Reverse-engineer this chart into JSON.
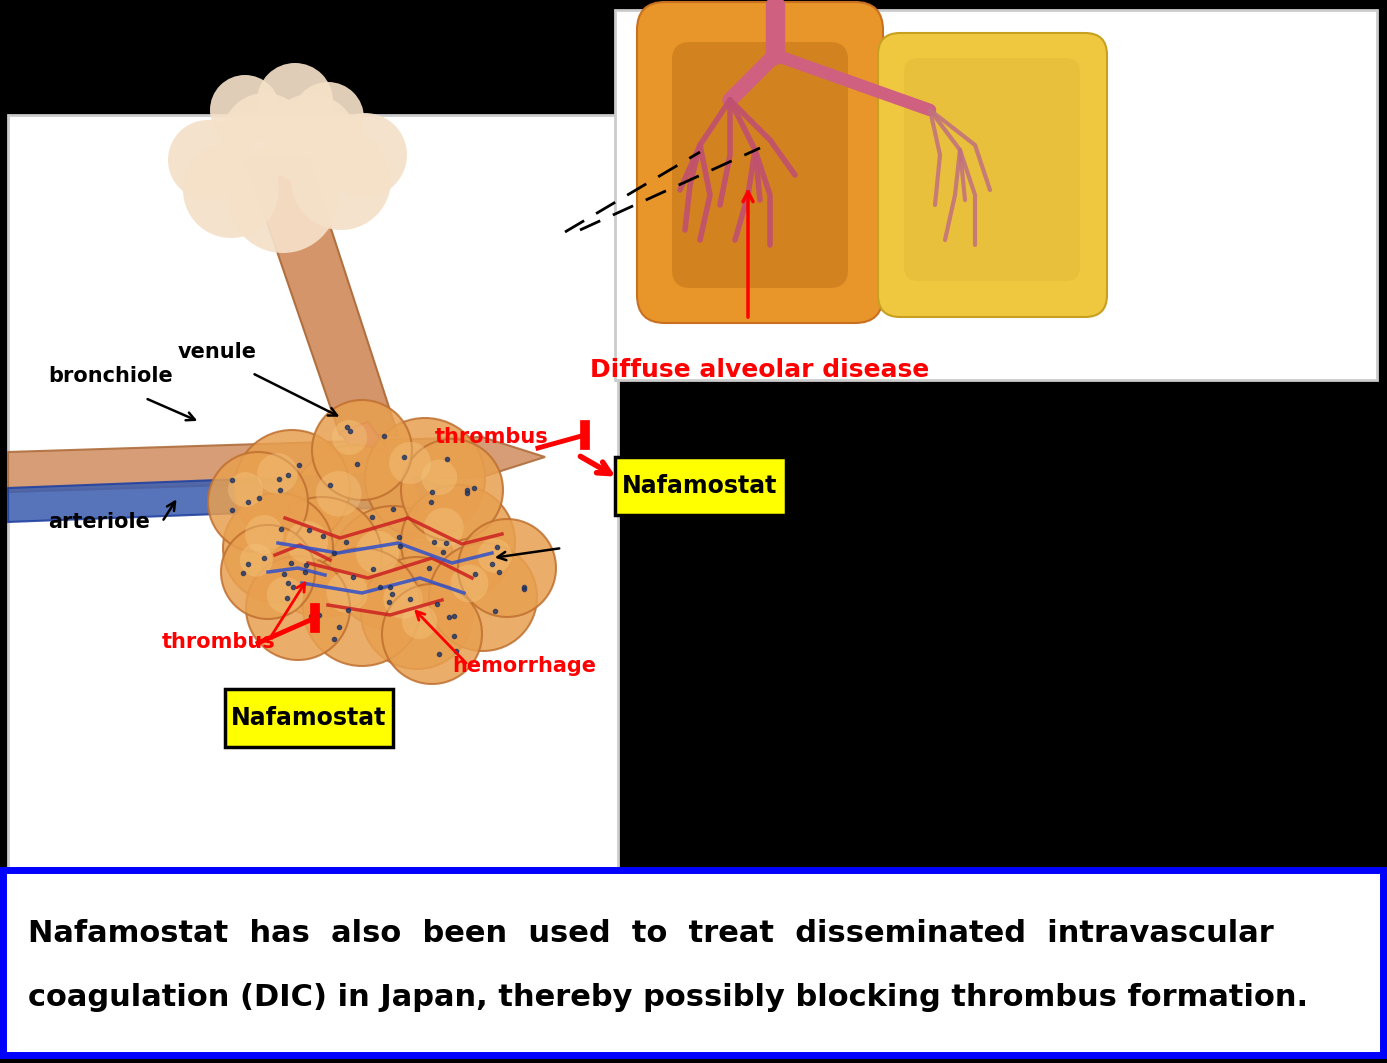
{
  "background_color": "#000000",
  "left_panel_bg": "#ffffff",
  "right_panel_bg": "#ffffff",
  "text_box_bg": "#ffffff",
  "text_box_border": "#0000ff",
  "main_text_line1": "Nafamostat  has  also  been  used  to  treat  disseminated  intravascular",
  "main_text_line2": "coagulation (DIC) in Japan, thereby possibly blocking thrombus formation.",
  "label_bronchiole": "bronchiole",
  "label_venule": "venule",
  "label_arteriole": "arteriole",
  "label_thrombus1": "thrombus",
  "label_thrombus2": "thrombus",
  "label_hemorrhage": "hemorrhage",
  "label_nafamostat1": "Nafamostat",
  "label_nafamostat2": "Nafamostat",
  "label_diffuse": "Diffuse alveolar disease",
  "red_color": "#ff0000",
  "black_color": "#000000",
  "yellow_color": "#ffff00",
  "nafamostat_box_bg": "#ffff00",
  "nafamostat_box_border": "#000000"
}
